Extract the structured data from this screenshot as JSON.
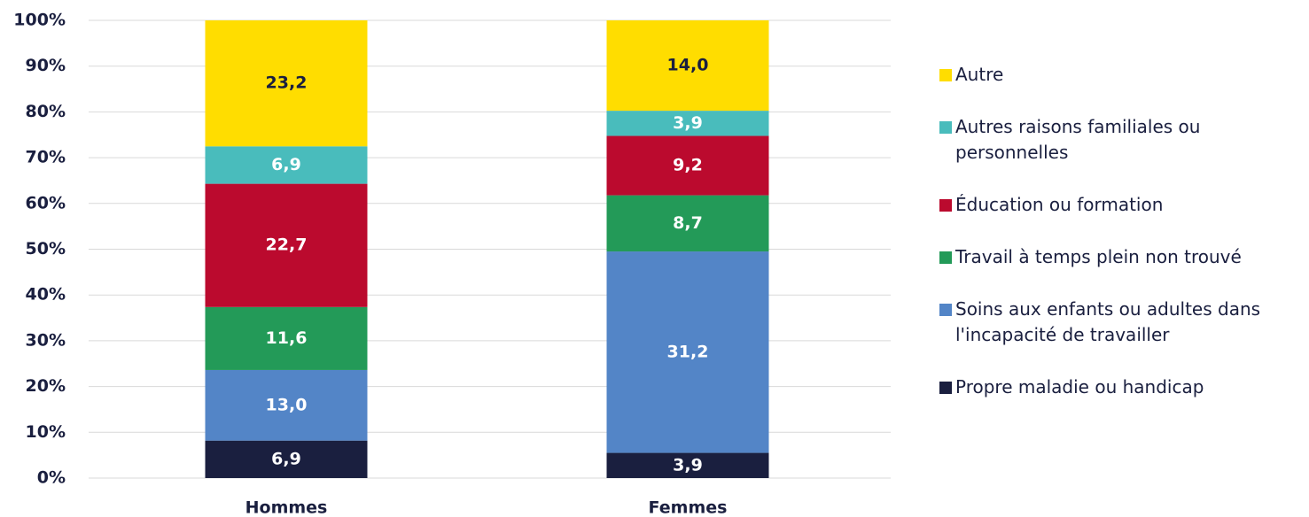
{
  "chart_data": {
    "type": "bar",
    "stacking": "percent",
    "categories": [
      "Hommes",
      "Femmes"
    ],
    "series": [
      {
        "name": "Propre maladie ou handicap",
        "color": "#1a1f3f",
        "values": [
          6.9,
          3.9
        ],
        "value_labels": [
          "6,9",
          "3,9"
        ]
      },
      {
        "name": "Soins aux enfants ou adultes dans l'incapacité de travailler",
        "color": "#5385c7",
        "values": [
          13.0,
          31.2
        ],
        "value_labels": [
          "13,0",
          "31,2"
        ]
      },
      {
        "name": "Travail à temps plein non trouvé",
        "color": "#239a58",
        "values": [
          11.6,
          8.7
        ],
        "value_labels": [
          "11,6",
          "8,7"
        ]
      },
      {
        "name": "Éducation ou formation",
        "color": "#bb0a2e",
        "values": [
          22.7,
          9.2
        ],
        "value_labels": [
          "22,7",
          "9,2"
        ]
      },
      {
        "name": "Autres raisons familiales ou personnelles",
        "color": "#49bcbc",
        "values": [
          6.9,
          3.9
        ],
        "value_labels": [
          "6,9",
          "3,9"
        ]
      },
      {
        "name": "Autre",
        "color": "#ffdd00",
        "values": [
          23.2,
          14.0
        ],
        "value_labels": [
          "23,2",
          "14,0"
        ]
      }
    ],
    "ylim": [
      0,
      100
    ],
    "yticks": [
      {
        "value": 0,
        "label": "0%"
      },
      {
        "value": 10,
        "label": "10%"
      },
      {
        "value": 20,
        "label": "20%"
      },
      {
        "value": 30,
        "label": "30%"
      },
      {
        "value": 40,
        "label": "40%"
      },
      {
        "value": 50,
        "label": "50%"
      },
      {
        "value": 60,
        "label": "60%"
      },
      {
        "value": 70,
        "label": "70%"
      },
      {
        "value": 80,
        "label": "80%"
      },
      {
        "value": 90,
        "label": "90%"
      },
      {
        "value": 100,
        "label": "100%"
      }
    ],
    "grid": true,
    "legend": "right"
  }
}
